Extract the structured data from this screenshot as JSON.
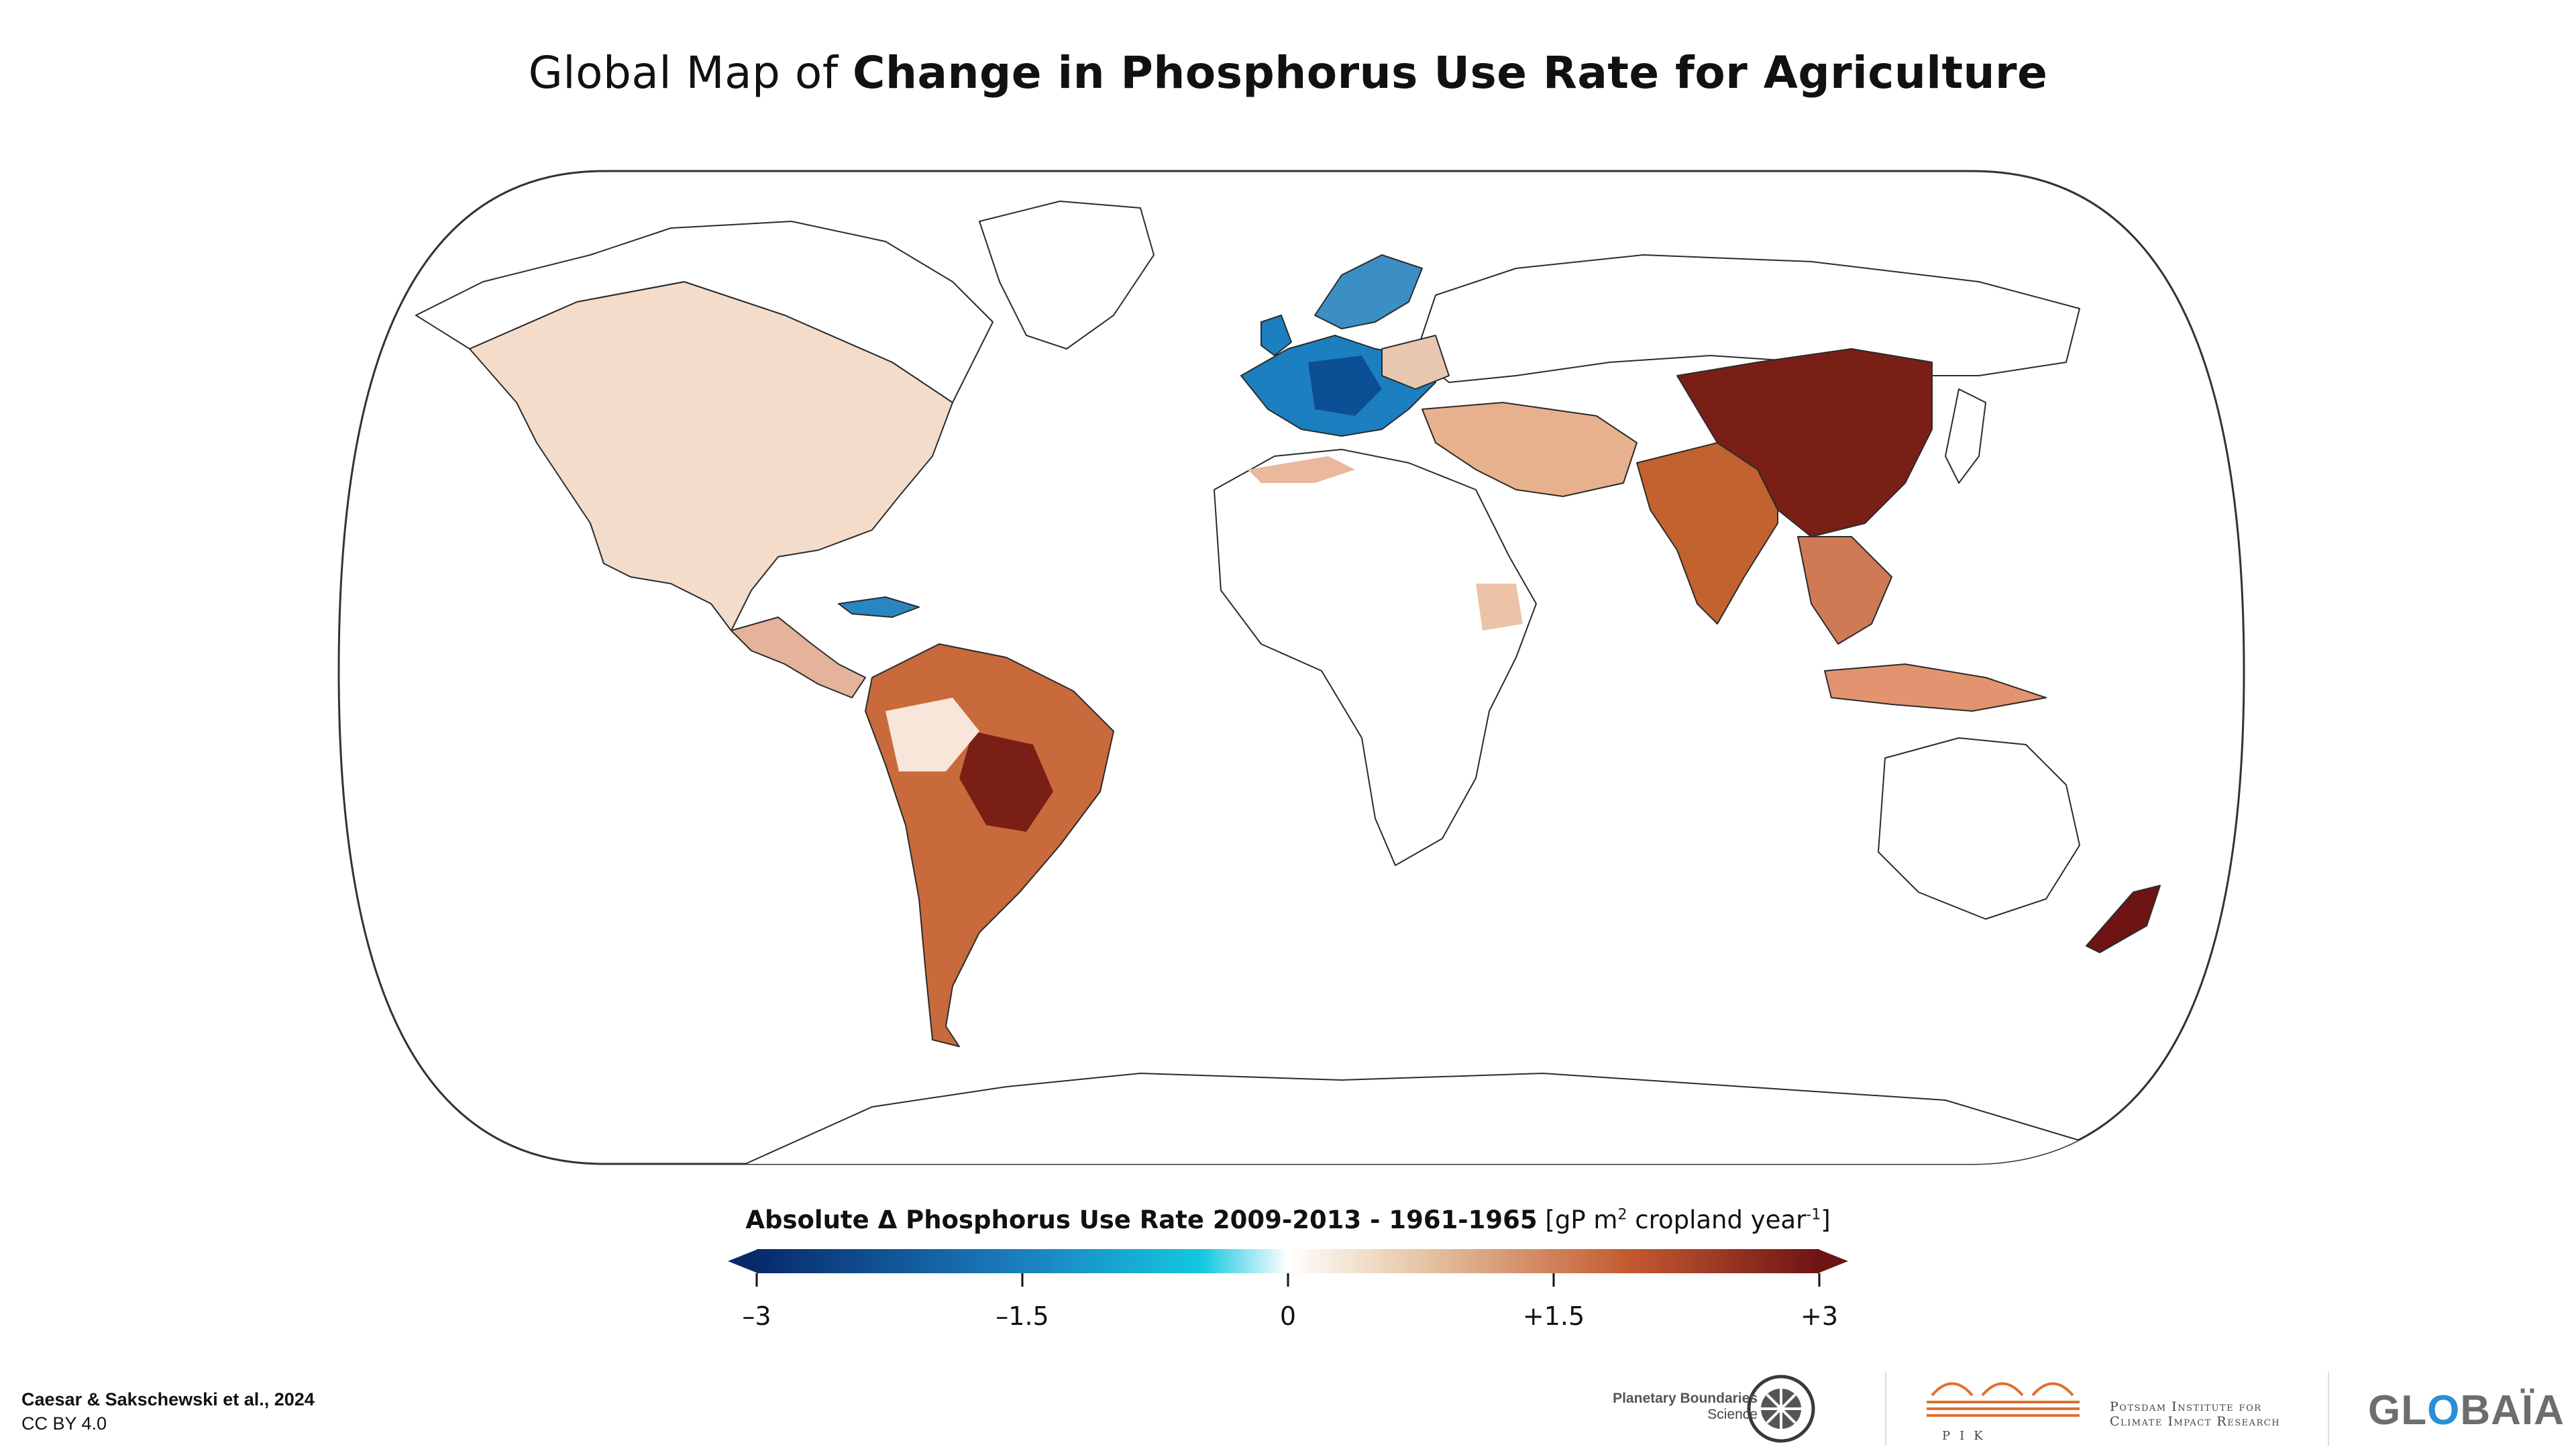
{
  "title": {
    "prefix": "Global Map of ",
    "bold": "Change in Phosphorus Use Rate for Agriculture"
  },
  "legend": {
    "title_bold": "Absolute Δ Phosphorus Use Rate 2009-2013 - 1961-1965",
    "title_unit_a": " [gP m",
    "title_unit_sup1": "2",
    "title_unit_b": " cropland year",
    "title_unit_sup2": "-1",
    "title_unit_c": "]",
    "ticks": [
      "–3",
      "–1.5",
      "0",
      "+1.5",
      "+3"
    ],
    "colors": {
      "neg_max": "#082a6b",
      "neg_mid": "#1b9fd0",
      "neg_low": "#14c8e0",
      "zero": "#ffffff",
      "pos_low": "#e7c8a8",
      "pos_mid": "#c45a30",
      "pos_max": "#6e1414"
    }
  },
  "credit": {
    "author": "Caesar & Sakschewski et al., 2024",
    "license": "CC BY 4.0"
  },
  "logos": {
    "pbs": {
      "line1": "Planetary Boundaries",
      "line2": "Science"
    },
    "pik": {
      "line1": "Potsdam Institute for",
      "line2": "Climate Impact Research",
      "sub": "PIK"
    },
    "globaia": {
      "pre": "GL",
      "o": "O",
      "post": "BAÏA"
    }
  }
}
